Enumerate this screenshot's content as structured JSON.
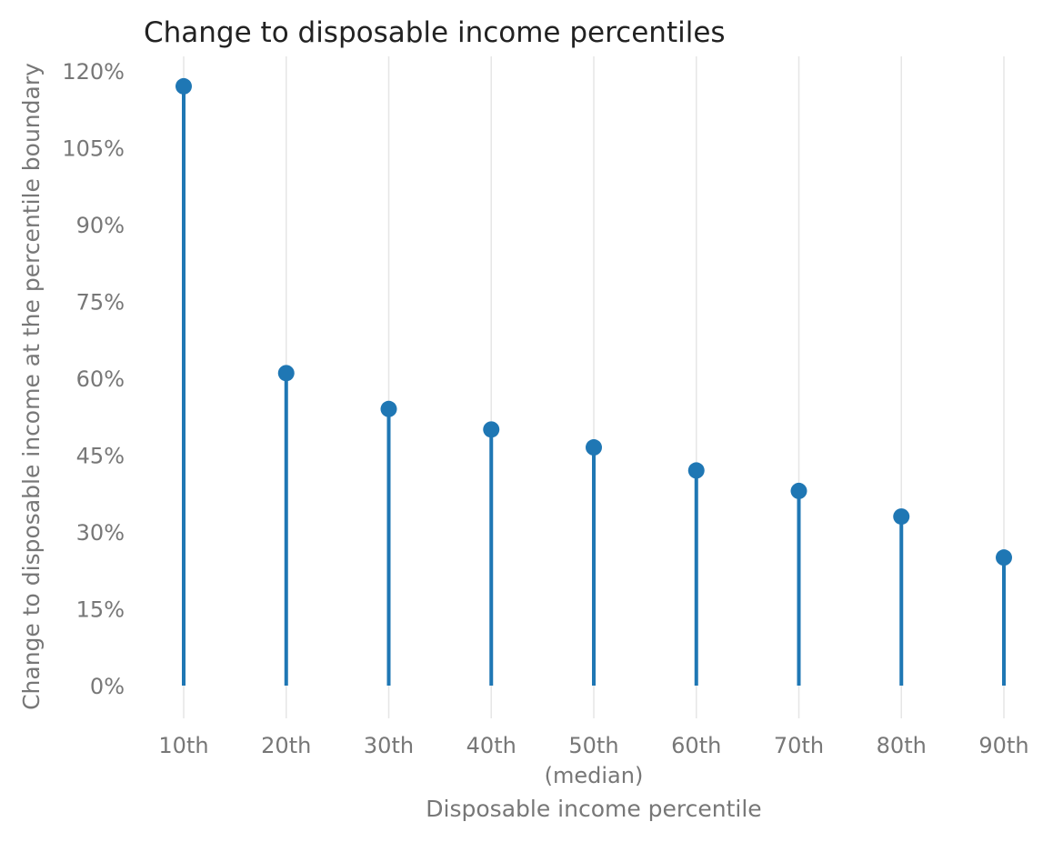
{
  "chart_data": {
    "type": "lollipop",
    "title": "Change to disposable income percentiles",
    "xlabel": "Disposable income percentile",
    "ylabel": "Change to disposable income at the percentile boundary",
    "categories": [
      "10th",
      "20th",
      "30th",
      "40th",
      "50th",
      "60th",
      "70th",
      "80th",
      "90th"
    ],
    "category_sublabels": [
      "",
      "",
      "",
      "",
      "(median)",
      "",
      "",
      "",
      ""
    ],
    "values": [
      117,
      61,
      54,
      50,
      46.5,
      42,
      38,
      33,
      25
    ],
    "value_format": "percent",
    "ylim": [
      0,
      120
    ],
    "yticks": [
      0,
      15,
      30,
      45,
      60,
      75,
      90,
      105,
      120
    ],
    "ytick_labels": [
      "0%",
      "15%",
      "30%",
      "45%",
      "60%",
      "75%",
      "90%",
      "105%",
      "120%"
    ],
    "grid": {
      "x": true,
      "y": false
    },
    "colors": {
      "series": "#1f77b4",
      "grid": "#e6e6e6",
      "axis_text": "#777777",
      "title_text": "#222222"
    }
  }
}
